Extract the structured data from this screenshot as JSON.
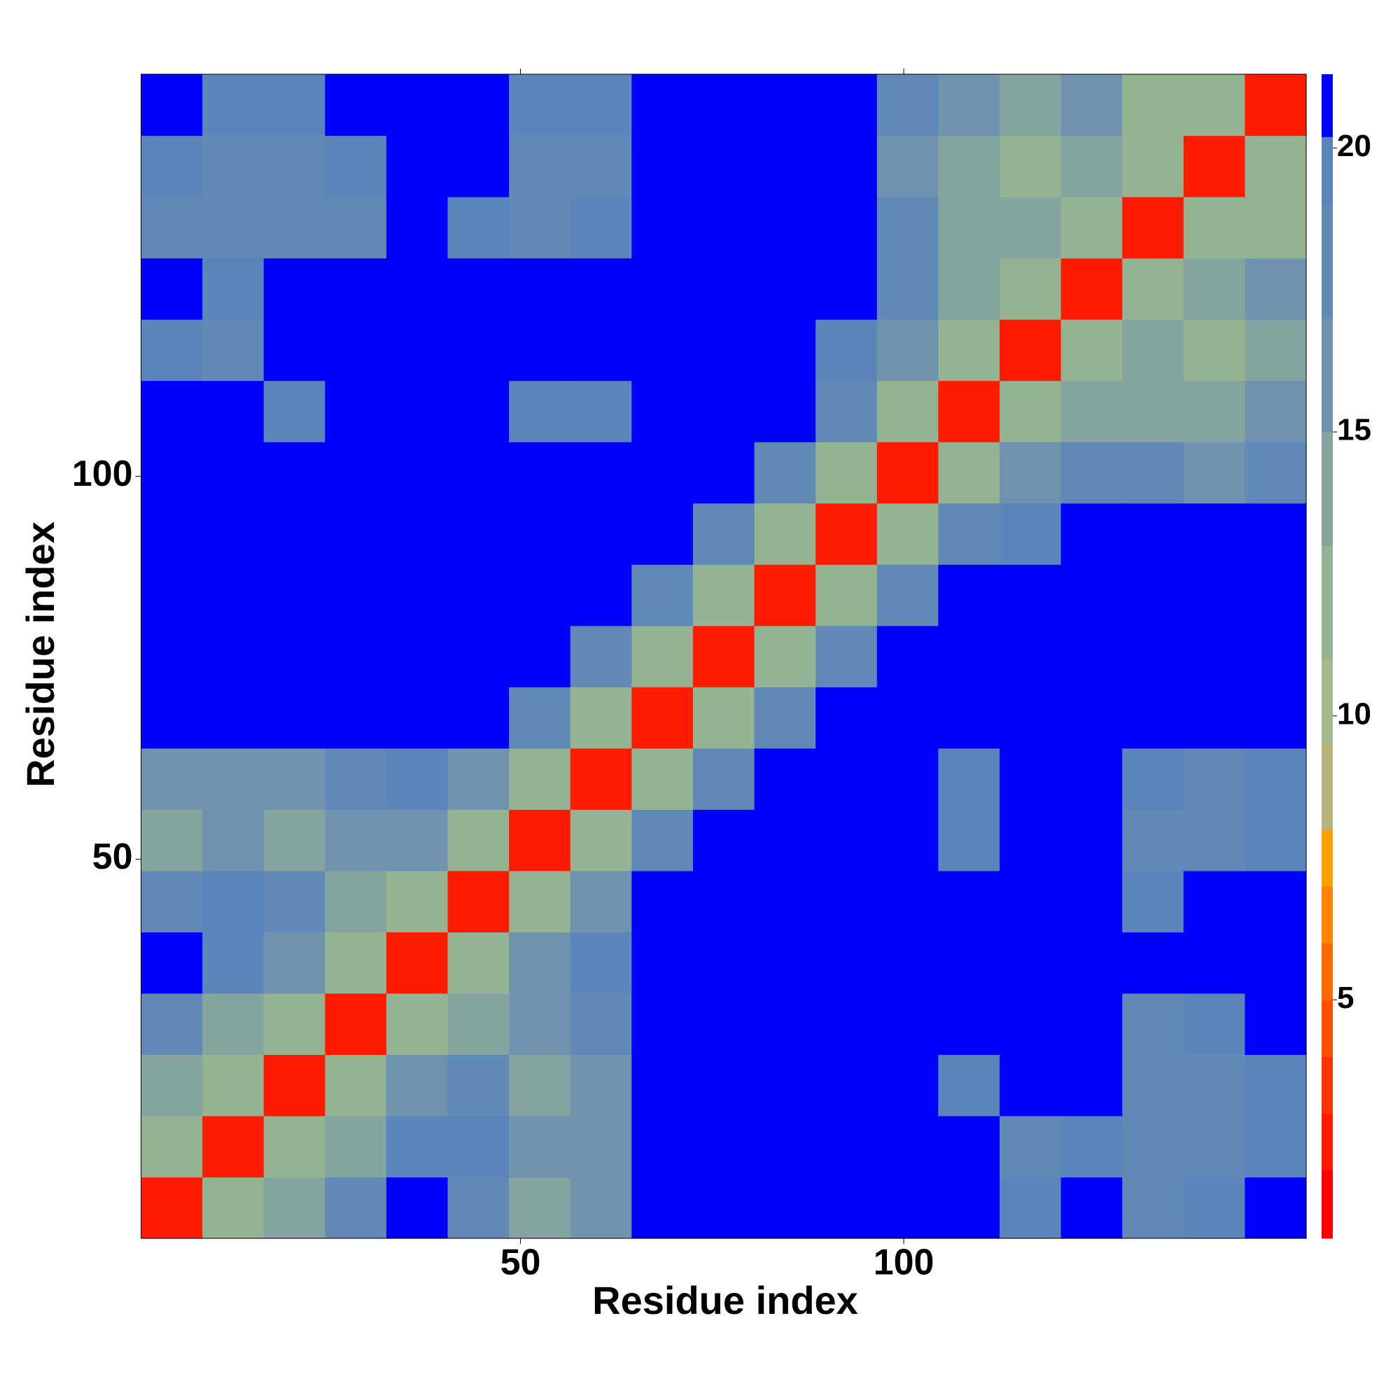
{
  "chart_data": {
    "type": "heatmap",
    "x_label": "Residue index",
    "y_label": "Residue index",
    "bins": [
      0.5,
      8.5,
      16.5,
      24.5,
      32.5,
      40.5,
      48.5,
      56.5,
      64.5,
      72.5,
      80.5,
      88.5,
      96.5,
      104.5,
      112.5,
      120.5,
      128.5,
      136.5,
      144.5,
      152.5
    ],
    "xlim": [
      0.5,
      152.5
    ],
    "ylim": [
      0.5,
      152.5
    ],
    "xticks": [
      50,
      100
    ],
    "yticks": [
      50,
      100
    ],
    "zlim": [
      0.8,
      21.3
    ],
    "zticks": [
      5,
      10,
      15,
      20
    ],
    "colorscale": [
      {
        "max": 2,
        "color": "#ff0000"
      },
      {
        "max": 3,
        "color": "#ff1a00"
      },
      {
        "max": 4,
        "color": "#ff3300"
      },
      {
        "max": 5,
        "color": "#ff5000"
      },
      {
        "max": 6,
        "color": "#ff6a00"
      },
      {
        "max": 7,
        "color": "#ff8400"
      },
      {
        "max": 8,
        "color": "#ffa000"
      },
      {
        "max": 9.5,
        "color": "#b5b27a"
      },
      {
        "max": 11,
        "color": "#a3b98a"
      },
      {
        "max": 13,
        "color": "#93b392"
      },
      {
        "max": 15,
        "color": "#84a4a0"
      },
      {
        "max": 17,
        "color": "#6f93ae"
      },
      {
        "max": 19,
        "color": "#6089b6"
      },
      {
        "max": 20.2,
        "color": "#5a86bb"
      },
      {
        "max": 22,
        "color": "#0000ff"
      }
    ],
    "z": [
      [
        3,
        12,
        15,
        18,
        21,
        18,
        14,
        17,
        21,
        21,
        21,
        21,
        21,
        21,
        20,
        21,
        19,
        20,
        21
      ],
      [
        12,
        3,
        12,
        15,
        20,
        20,
        16,
        17,
        21,
        21,
        21,
        21,
        21,
        21,
        19,
        20,
        18,
        18,
        20
      ],
      [
        15,
        12,
        3,
        12,
        16,
        19,
        15,
        17,
        21,
        21,
        21,
        21,
        21,
        20,
        21,
        21,
        18,
        18,
        20
      ],
      [
        18,
        15,
        12,
        3,
        12,
        15,
        16,
        19,
        21,
        21,
        21,
        21,
        21,
        21,
        21,
        21,
        19,
        20,
        21
      ],
      [
        21,
        20,
        16,
        12,
        3,
        12,
        17,
        20,
        21,
        21,
        21,
        21,
        21,
        21,
        21,
        21,
        21,
        21,
        21
      ],
      [
        18,
        20,
        19,
        15,
        12,
        3,
        12,
        17,
        21,
        21,
        21,
        21,
        21,
        21,
        21,
        21,
        20,
        21,
        21
      ],
      [
        14,
        16,
        15,
        16,
        17,
        12,
        3,
        12,
        18,
        21,
        21,
        21,
        21,
        20,
        21,
        21,
        19,
        19,
        20
      ],
      [
        17,
        17,
        17,
        19,
        20,
        17,
        12,
        3,
        12,
        19,
        21,
        21,
        21,
        20,
        21,
        21,
        20,
        19,
        20
      ],
      [
        21,
        21,
        21,
        21,
        21,
        21,
        18,
        12,
        3,
        12,
        19,
        21,
        21,
        21,
        21,
        21,
        21,
        21,
        21
      ],
      [
        21,
        21,
        21,
        21,
        21,
        21,
        21,
        19,
        12,
        3,
        12,
        19,
        21,
        21,
        21,
        21,
        21,
        21,
        21
      ],
      [
        21,
        21,
        21,
        21,
        21,
        21,
        21,
        21,
        19,
        12,
        3,
        12,
        19,
        21,
        21,
        21,
        21,
        21,
        21
      ],
      [
        21,
        21,
        21,
        21,
        21,
        21,
        21,
        21,
        21,
        19,
        12,
        3,
        12,
        18,
        20,
        21,
        21,
        21,
        21
      ],
      [
        21,
        21,
        21,
        21,
        21,
        21,
        21,
        21,
        21,
        21,
        19,
        12,
        3,
        12,
        17,
        19,
        18,
        17,
        18
      ],
      [
        21,
        21,
        20,
        21,
        21,
        21,
        20,
        20,
        21,
        21,
        21,
        18,
        12,
        3,
        12,
        15,
        14,
        14,
        16
      ],
      [
        20,
        19,
        21,
        21,
        21,
        21,
        21,
        21,
        21,
        21,
        21,
        20,
        17,
        12,
        3,
        12,
        14,
        13,
        15
      ],
      [
        21,
        20,
        21,
        21,
        21,
        21,
        21,
        21,
        21,
        21,
        21,
        21,
        19,
        15,
        12,
        3,
        12,
        15,
        17
      ],
      [
        19,
        18,
        18,
        19,
        21,
        20,
        19,
        20,
        21,
        21,
        21,
        21,
        18,
        14,
        14,
        12,
        3,
        12,
        13
      ],
      [
        20,
        18,
        18,
        20,
        21,
        21,
        19,
        19,
        21,
        21,
        21,
        21,
        17,
        14,
        13,
        15,
        12,
        3,
        12
      ],
      [
        21,
        20,
        20,
        21,
        21,
        21,
        20,
        20,
        21,
        21,
        21,
        21,
        18,
        16,
        15,
        17,
        13,
        12,
        3
      ]
    ]
  }
}
